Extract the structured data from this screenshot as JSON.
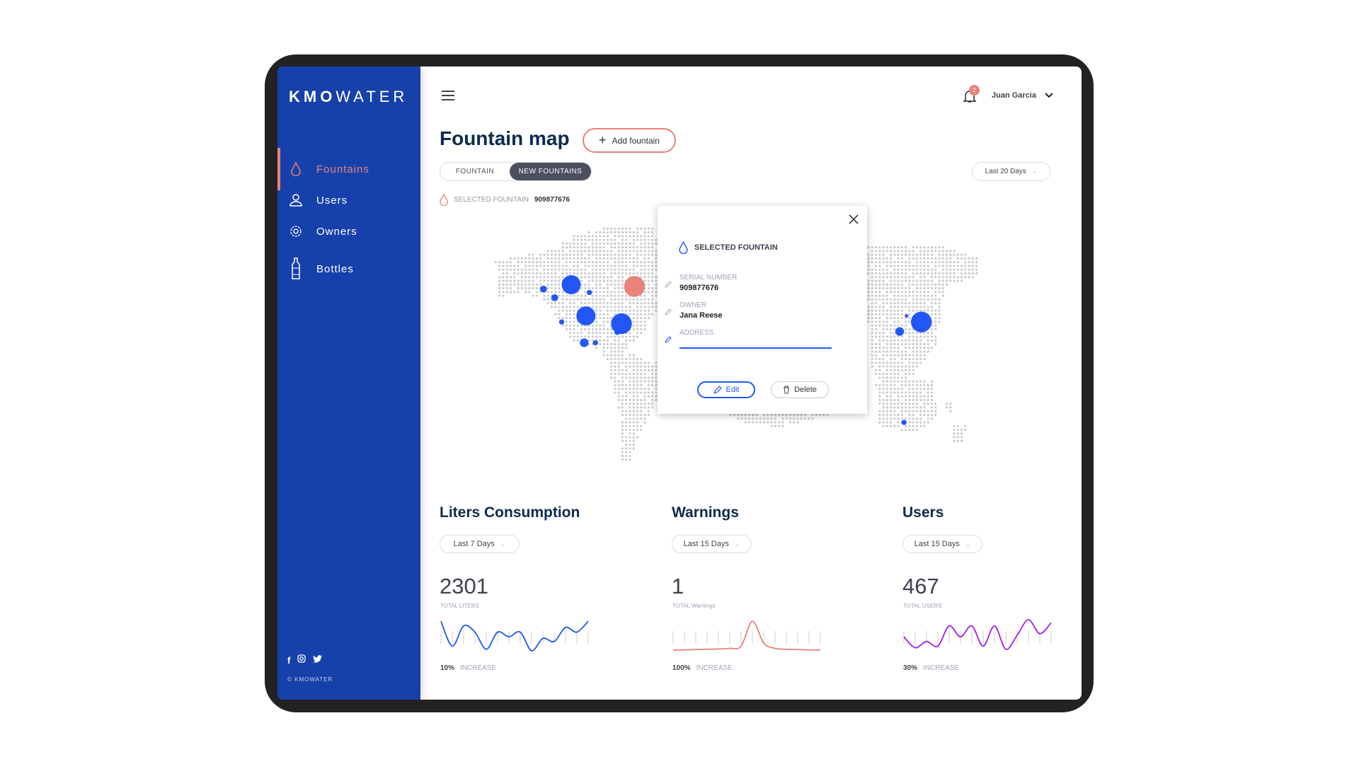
{
  "brand": {
    "logo_bold": "KMO",
    "logo_light": "WATER",
    "copyright": "© KMOWATER"
  },
  "sidebar": {
    "items": [
      {
        "label": "Fountains",
        "icon": "drop-icon",
        "active": true
      },
      {
        "label": "Users",
        "icon": "user-icon"
      },
      {
        "label": "Owners",
        "icon": "gear-icon"
      },
      {
        "label": "Bottles",
        "icon": "bottle-icon"
      }
    ],
    "social": [
      "facebook-icon",
      "instagram-icon",
      "twitter-icon"
    ]
  },
  "header": {
    "notifications": "2",
    "user_name": "Juan Garcia"
  },
  "page": {
    "title": "Fountain map",
    "add_button": "Add fountain",
    "tabs": [
      {
        "label": "FOUNTAIN"
      },
      {
        "label": "NEW FOUNTAINS",
        "active": true
      }
    ],
    "range": "Last 20 Days",
    "selected_label": "SELECTED FOUNTAIN",
    "selected_value": "909877676"
  },
  "map": {
    "markers_color": "#2357F5",
    "highlight_color": "#E8837A"
  },
  "popup": {
    "title": "SELECTED FOUNTAIN",
    "serial_label": "SERIAL NUMBER",
    "serial_value": "909877676",
    "owner_label": "OWNER",
    "owner_value": "Jana Reese",
    "address_label": "ADDRESS",
    "address_value": "",
    "edit": "Edit",
    "delete": "Delete"
  },
  "stats": [
    {
      "title": "Liters Consumption",
      "range": "Last 7 Days",
      "value": "2301",
      "sub": "TOTAL LITERS",
      "pct": "10%",
      "pct_label": "INCREASE",
      "color": "#2357F5",
      "series": [
        0.95,
        0.15,
        0.8,
        0.6,
        0.05,
        0.6,
        0.45,
        0.6,
        0.0,
        0.4,
        0.3,
        0.75,
        0.6,
        0.95
      ]
    },
    {
      "title": "Warnings",
      "range": "Last 15 Days",
      "value": "1",
      "sub": "TOTAL Warnings",
      "pct": "100%",
      "pct_label": "INCREASE",
      "color": "#E8837A",
      "series": [
        0.02,
        0.03,
        0.04,
        0.05,
        0.06,
        0.08,
        0.15,
        0.95,
        0.25,
        0.08,
        0.05,
        0.04,
        0.03,
        0.02
      ]
    },
    {
      "title": "Users",
      "range": "Last 15 Days",
      "value": "467",
      "sub": "TOTAL USERS",
      "pct": "30%",
      "pct_label": "INCREASE",
      "color": "#A020F0",
      "series": [
        0.45,
        0.1,
        0.3,
        0.15,
        0.8,
        0.45,
        0.8,
        0.15,
        0.8,
        0.05,
        0.5,
        1.0,
        0.55,
        0.9
      ]
    }
  ]
}
